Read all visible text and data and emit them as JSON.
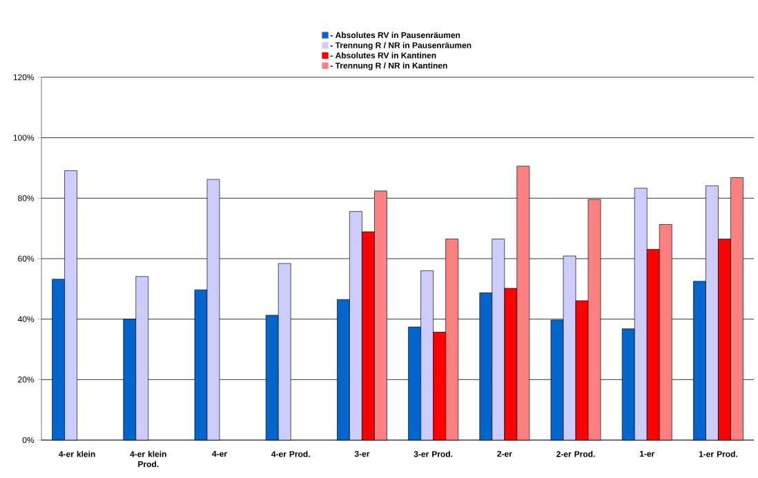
{
  "chart_data": {
    "type": "bar",
    "categories": [
      "4-er klein",
      "4-er klein Prod.",
      "4-er",
      "4-er Prod.",
      "3-er",
      "3-er Prod.",
      "2-er",
      "2-er Prod.",
      "1-er",
      "1-er Prod."
    ],
    "series": [
      {
        "name": "- Absolutes RV in Pausenräumen",
        "color": "#0066cc",
        "values": [
          53.2,
          40.0,
          49.7,
          41.3,
          46.5,
          37.4,
          48.7,
          39.7,
          36.8,
          52.5
        ]
      },
      {
        "name": "- Trennung R / NR in Pausenräumen",
        "color": "#ccccff",
        "values": [
          89.1,
          54.1,
          86.2,
          58.4,
          75.6,
          56.0,
          66.5,
          60.9,
          83.3,
          84.1
        ]
      },
      {
        "name": "- Absolutes RV in Kantinen",
        "color": "#ff0000",
        "values": [
          null,
          null,
          null,
          null,
          68.9,
          35.7,
          50.2,
          46.1,
          63.1,
          66.5
        ]
      },
      {
        "name": "- Trennung R / NR in Kantinen",
        "color": "#ff8080",
        "values": [
          null,
          null,
          null,
          null,
          82.4,
          66.5,
          90.6,
          79.6,
          71.3,
          86.8
        ]
      }
    ],
    "ylim": [
      0,
      120
    ],
    "yticks": [
      {
        "value": 0,
        "label": "0%"
      },
      {
        "value": 20,
        "label": "20%"
      },
      {
        "value": 40,
        "label": "40%"
      },
      {
        "value": 60,
        "label": "60%"
      },
      {
        "value": 80,
        "label": "80%"
      },
      {
        "value": 100,
        "label": "100%"
      },
      {
        "value": 120,
        "label": "120%"
      }
    ],
    "grid": "y",
    "legend": "top"
  }
}
